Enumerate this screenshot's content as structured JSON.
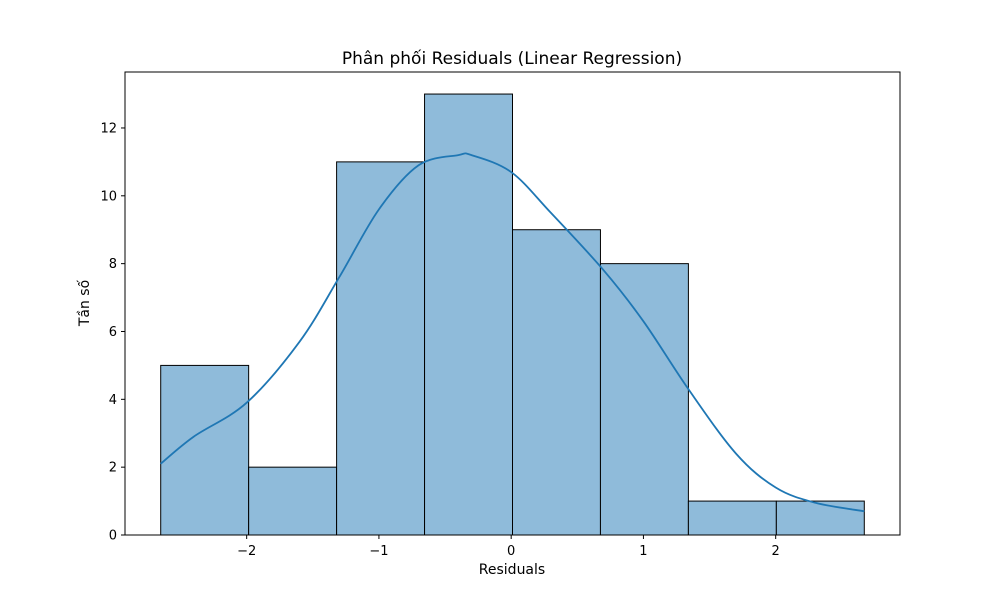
{
  "chart_data": {
    "type": "bar",
    "title": "Phân phối Residuals (Linear Regression)",
    "xlabel": "Residuals",
    "ylabel": "Tần số",
    "bins": [
      {
        "x0": -2.65,
        "x1": -1.985,
        "count": 5
      },
      {
        "x0": -1.985,
        "x1": -1.32,
        "count": 2
      },
      {
        "x0": -1.32,
        "x1": -0.655,
        "count": 11
      },
      {
        "x0": -0.655,
        "x1": 0.01,
        "count": 13
      },
      {
        "x0": 0.01,
        "x1": 0.675,
        "count": 9
      },
      {
        "x0": 0.675,
        "x1": 1.34,
        "count": 8
      },
      {
        "x0": 1.34,
        "x1": 2.005,
        "count": 1
      },
      {
        "x0": 2.005,
        "x1": 2.67,
        "count": 1
      }
    ],
    "kde": {
      "name": "KDE",
      "x": [
        -2.65,
        -2.4,
        -2.0,
        -1.6,
        -1.3,
        -1.0,
        -0.7,
        -0.4,
        -0.3,
        0.0,
        0.3,
        0.7,
        1.0,
        1.34,
        1.7,
        2.0,
        2.3,
        2.67
      ],
      "y": [
        2.1,
        2.9,
        3.9,
        5.7,
        7.6,
        9.6,
        10.9,
        11.2,
        11.2,
        10.7,
        9.5,
        7.8,
        6.3,
        4.3,
        2.4,
        1.4,
        0.95,
        0.7
      ]
    },
    "xlim": [
      -2.92,
      2.94
    ],
    "ylim": [
      0,
      13.65
    ],
    "xticks": [
      -2,
      -1,
      0,
      1,
      2
    ],
    "xtick_labels": [
      "−2",
      "−1",
      "0",
      "1",
      "2"
    ],
    "yticks": [
      0,
      2,
      4,
      6,
      8,
      10,
      12
    ],
    "ytick_labels": [
      "0",
      "2",
      "4",
      "6",
      "8",
      "10",
      "12"
    ],
    "bar_color": "#8fbbda",
    "bar_edge_color": "#000000",
    "line_color": "#1f77b4",
    "grid": false
  }
}
